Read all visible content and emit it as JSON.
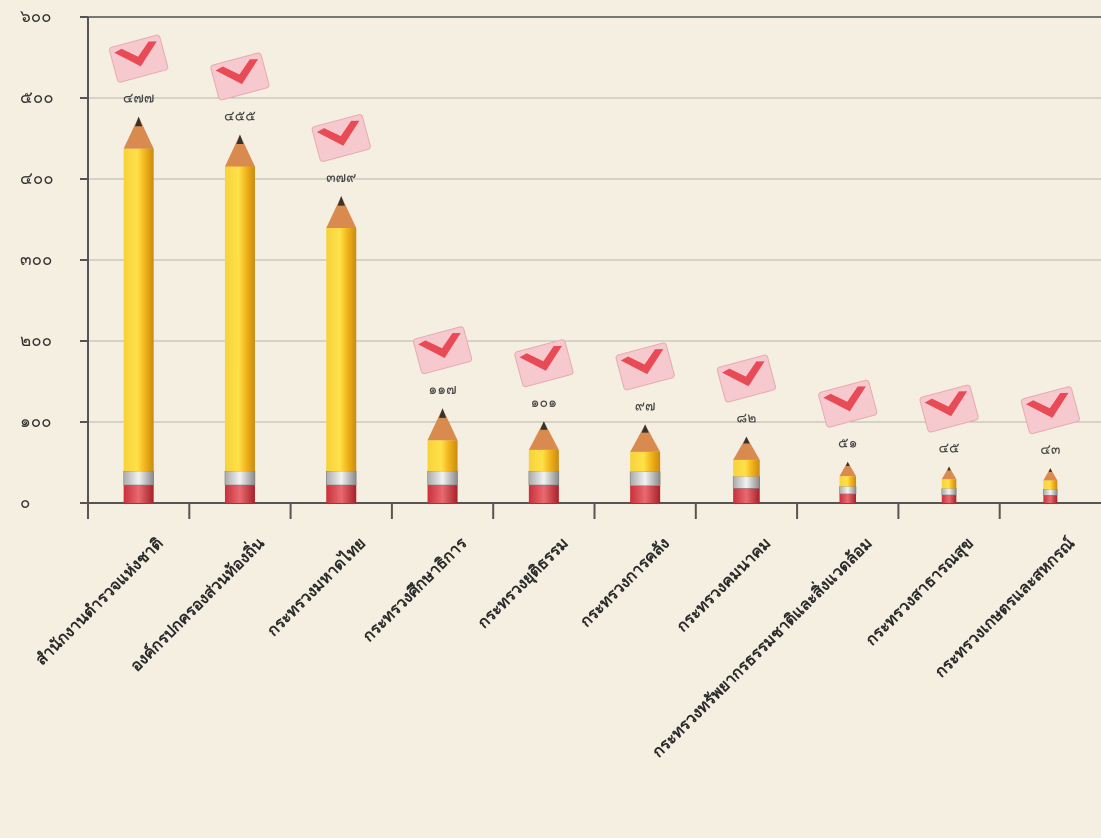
{
  "chart_data": {
    "type": "pencil-bar",
    "categories": [
      "สำนักงานตำรวจแห่งชาติ",
      "องค์กรปกครองส่วนท้องถิ่น",
      "กระทรวงมหาดไทย",
      "กระทรวงศึกษาธิการ",
      "กระทรวงยุติธรรม",
      "กระทรวงการคลัง",
      "กระทรวงคมนาคม",
      "กระทรวงทรัพยากรธรรมชาติและสิ่งแวดล้อม",
      "กระทรวงสาธารณสุข",
      "กระทรวงเกษตรและสหกรณ์"
    ],
    "values": [
      477,
      455,
      379,
      117,
      101,
      97,
      82,
      51,
      45,
      43
    ],
    "value_labels": [
      "๔๗๗",
      "๔๕๕",
      "๓๗๙",
      "๑๑๗",
      "๑๐๑",
      "๙๗",
      "๘๒",
      "๕๑",
      "๔๕",
      "๔๓"
    ],
    "color": "#f5c518",
    "ylim": [
      0,
      600
    ],
    "yticks": [
      {
        "value": 0,
        "label": "๐"
      },
      {
        "value": 100,
        "label": "๑๐๐"
      },
      {
        "value": 200,
        "label": "๒๐๐"
      },
      {
        "value": 300,
        "label": "๓๐๐"
      },
      {
        "value": 400,
        "label": "๔๐๐"
      },
      {
        "value": 500,
        "label": "๕๐๐"
      },
      {
        "value": 600,
        "label": "๖๐๐"
      }
    ],
    "grid": true
  }
}
